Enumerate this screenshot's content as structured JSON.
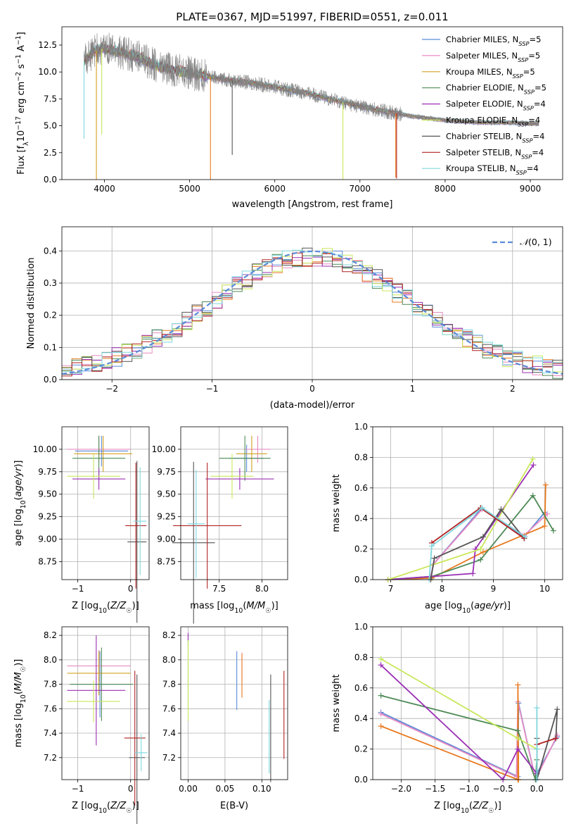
{
  "figure_title": "PLATE=0367, MJD=51997, FIBERID=0551, z=0.011",
  "colors": {
    "Chabrier MILES": "#5b8bd8",
    "Salpeter MILES": "#e78ac3",
    "Kroupa MILES": "#d4a020",
    "Chabrier ELODIE": "#4d8a55",
    "Salpeter ELODIE": "#9b30b5",
    "Kroupa ELODIE": "#c8e85a",
    "Chabrier STELIB": "#555555",
    "Salpeter STELIB": "#b22222",
    "Kroupa STELIB": "#7fd7dd",
    "orange": "#e87a20",
    "gaussian": "#5b8bd8"
  },
  "chart_data": [
    {
      "id": "spectrum",
      "type": "line",
      "title": "PLATE=0367, MJD=51997, FIBERID=0551, z=0.011",
      "xlabel": "wavelength [Angstrom, rest frame]",
      "ylabel": "Flux [f_λ 10^-17 erg cm^-2 s^-1 A^-1]",
      "xlim": [
        3500,
        9380
      ],
      "ylim": [
        0,
        14.2
      ],
      "xticks": [
        4000,
        5000,
        6000,
        7000,
        8000,
        9000
      ],
      "yticks": [
        0.0,
        2.5,
        5.0,
        7.5,
        10.0,
        12.5
      ],
      "legend_position": "top-right",
      "legend": [
        {
          "prefix": "Chabrier MILES, N",
          "sub": "SSP",
          "suffix": "=5"
        },
        {
          "prefix": "Salpeter MILES, N",
          "sub": "SSP",
          "suffix": "=5"
        },
        {
          "prefix": "Kroupa MILES, N",
          "sub": "SSP",
          "suffix": "=5"
        },
        {
          "prefix": "Chabrier ELODIE, N",
          "sub": "SSP",
          "suffix": "=5"
        },
        {
          "prefix": "Salpeter ELODIE, N",
          "sub": "SSP",
          "suffix": "=4"
        },
        {
          "prefix": "Kroupa ELODIE, N",
          "sub": "SSP",
          "suffix": "=4"
        },
        {
          "prefix": "Chabrier STELIB, N",
          "sub": "SSP",
          "suffix": "=4"
        },
        {
          "prefix": "Salpeter STELIB, N",
          "sub": "SSP",
          "suffix": "=4"
        },
        {
          "prefix": "Kroupa STELIB, N",
          "sub": "SSP",
          "suffix": "=4"
        }
      ],
      "continuum": {
        "x": [
          3750,
          3900,
          4000,
          4200,
          4400,
          4600,
          4800,
          5000,
          5200,
          5400,
          5600,
          5800,
          6000,
          6200,
          6400,
          6600,
          6800,
          7000,
          7200,
          7400,
          7600,
          7800,
          8000,
          8200,
          8400,
          8600,
          8800,
          9000,
          9100
        ],
        "y": [
          11.0,
          12.0,
          12.2,
          11.8,
          11.4,
          10.6,
          10.2,
          9.9,
          9.6,
          9.3,
          9.1,
          8.9,
          8.6,
          8.3,
          8.0,
          7.6,
          7.2,
          6.8,
          6.5,
          6.2,
          5.9,
          5.7,
          5.5,
          5.4,
          5.3,
          5.3,
          5.3,
          5.2,
          5.2
        ]
      },
      "dips": [
        {
          "x": 3905,
          "y": 0.0,
          "color": "Kroupa MILES"
        },
        {
          "x": 3968,
          "y": 4.2,
          "color": "Kroupa ELODIE"
        },
        {
          "x": 5245,
          "y": 0.0,
          "color": "orange"
        },
        {
          "x": 5500,
          "y": 2.3,
          "color": "Chabrier STELIB"
        },
        {
          "x": 6800,
          "y": 0.0,
          "color": "Kroupa ELODIE"
        },
        {
          "x": 7430,
          "y": 0.1,
          "color": "Salpeter STELIB"
        },
        {
          "x": 7420,
          "y": 0.2,
          "color": "orange"
        },
        {
          "x": 3760,
          "y": 3.8,
          "color": "Kroupa STELIB"
        }
      ]
    },
    {
      "id": "residuals",
      "type": "histogram",
      "xlabel": "(data-model)/error",
      "ylabel": "Normed distribution",
      "xlim": [
        -2.5,
        2.5
      ],
      "ylim": [
        0,
        0.475
      ],
      "xticks": [
        -2,
        -1,
        0,
        1,
        2
      ],
      "yticks": [
        0.0,
        0.1,
        0.2,
        0.3,
        0.4
      ],
      "grid": true,
      "legend_position": "top-right",
      "gaussian_label": "N(0, 1)",
      "bin_width": 0.1
    },
    {
      "id": "age_vs_Z",
      "type": "errorbar",
      "xlabel": "Z [log10(Z/Z☉)]",
      "ylabel": "age [log10(age/yr)]",
      "xlim": [
        -1.3,
        0.35
      ],
      "ylim": [
        8.55,
        10.25
      ],
      "xticks": [
        -1,
        0
      ],
      "yticks": [
        8.75,
        9.0,
        9.25,
        9.5,
        9.75,
        10.0
      ],
      "points": [
        {
          "m": "Chabrier MILES",
          "x": -0.55,
          "xerr": 0.5,
          "y": 9.98,
          "yerr": 0.17
        },
        {
          "m": "Salpeter MILES",
          "x": -0.6,
          "xerr": 0.6,
          "y": 10.0,
          "yerr": 0.15
        },
        {
          "m": "Kroupa MILES",
          "x": -0.52,
          "xerr": 0.55,
          "y": 9.95,
          "yerr": 0.2
        },
        {
          "m": "Chabrier ELODIE",
          "x": -0.6,
          "xerr": 0.5,
          "y": 9.9,
          "yerr": 0.25
        },
        {
          "m": "Salpeter ELODIE",
          "x": -0.6,
          "xerr": 0.5,
          "y": 9.67,
          "yerr": 0.12
        },
        {
          "m": "Kroupa ELODIE",
          "x": -0.7,
          "xerr": 0.5,
          "y": 9.7,
          "yerr": 0.25
        },
        {
          "m": "Chabrier STELIB",
          "x": 0.12,
          "xerr": 0.18,
          "y": 8.97,
          "yerr": 0.9
        },
        {
          "m": "Salpeter STELIB",
          "x": 0.1,
          "xerr": 0.2,
          "y": 9.15,
          "yerr": 0.7
        },
        {
          "m": "Kroupa STELIB",
          "x": 0.18,
          "xerr": 0.12,
          "y": 9.2,
          "yerr": 0.6
        }
      ]
    },
    {
      "id": "age_vs_mass",
      "type": "errorbar",
      "xlabel": "mass [log10(M/M☉)]",
      "ylabel": "",
      "xlim": [
        7.05,
        8.3
      ],
      "ylim": [
        8.55,
        10.25
      ],
      "xticks": [
        7.5,
        8.0
      ],
      "yticks": [
        8.75,
        9.0,
        9.25,
        9.5,
        9.75,
        10.0
      ],
      "points": [
        {
          "m": "Chabrier MILES",
          "x": 7.82,
          "xerr": 0.2,
          "y": 9.9,
          "yerr": 0.15
        },
        {
          "m": "Salpeter MILES",
          "x": 7.95,
          "xerr": 0.15,
          "y": 10.0,
          "yerr": 0.15
        },
        {
          "m": "Kroupa MILES",
          "x": 7.88,
          "xerr": 0.18,
          "y": 9.95,
          "yerr": 0.2
        },
        {
          "m": "Chabrier ELODIE",
          "x": 7.8,
          "xerr": 0.3,
          "y": 9.9,
          "yerr": 0.25
        },
        {
          "m": "Salpeter ELODIE",
          "x": 7.74,
          "xerr": 0.4,
          "y": 9.67,
          "yerr": 0.12
        },
        {
          "m": "Kroupa ELODIE",
          "x": 7.65,
          "xerr": 0.25,
          "y": 9.7,
          "yerr": 0.25
        },
        {
          "m": "Chabrier STELIB",
          "x": 7.2,
          "xerr": 0.25,
          "y": 8.96,
          "yerr": 0.9
        },
        {
          "m": "Salpeter STELIB",
          "x": 7.36,
          "xerr": 0.4,
          "y": 9.15,
          "yerr": 0.7
        },
        {
          "m": "Kroupa STELIB",
          "x": 7.23,
          "xerr": 0.1,
          "y": 9.17,
          "yerr": 0.6
        }
      ]
    },
    {
      "id": "mass_weight_vs_age",
      "type": "line",
      "xlabel": "age [log10(age/yr)]",
      "ylabel": "mass weight",
      "xlim": [
        6.65,
        10.35
      ],
      "ylim": [
        0,
        1.0
      ],
      "xticks": [
        7,
        8,
        9,
        10
      ],
      "yticks": [
        0.0,
        0.2,
        0.4,
        0.6,
        0.8,
        1.0
      ],
      "grid": true,
      "series": [
        {
          "m": "Chabrier MILES",
          "x": [
            6.95,
            7.78,
            7.83,
            8.78,
            9.6,
            10.0
          ],
          "y": [
            0.0,
            0.02,
            0.1,
            0.47,
            0.28,
            0.44
          ]
        },
        {
          "m": "Salpeter MILES",
          "x": [
            6.95,
            7.78,
            7.83,
            8.78,
            9.6,
            10.05
          ],
          "y": [
            0.0,
            0.02,
            0.1,
            0.46,
            0.29,
            0.43
          ]
        },
        {
          "m": "orange",
          "x": [
            6.95,
            7.8,
            8.8,
            10.0,
            10.02
          ],
          "y": [
            0.0,
            0.01,
            0.18,
            0.35,
            0.62
          ]
        },
        {
          "m": "Chabrier ELODIE",
          "x": [
            6.95,
            7.8,
            8.75,
            9.77,
            10.17
          ],
          "y": [
            0.0,
            0.02,
            0.13,
            0.55,
            0.32
          ]
        },
        {
          "m": "Salpeter ELODIE",
          "x": [
            6.95,
            8.6,
            8.65,
            9.78
          ],
          "y": [
            0.0,
            0.04,
            0.2,
            0.75
          ]
        },
        {
          "m": "Kroupa ELODIE",
          "x": [
            6.95,
            8.75,
            9.77
          ],
          "y": [
            0.0,
            0.2,
            0.79
          ]
        },
        {
          "m": "Chabrier STELIB",
          "x": [
            7.78,
            7.85,
            8.8,
            9.15,
            9.6
          ],
          "y": [
            0.0,
            0.14,
            0.28,
            0.46,
            0.27
          ]
        },
        {
          "m": "Salpeter STELIB",
          "x": [
            7.8,
            8.75,
            9.6
          ],
          "y": [
            0.24,
            0.47,
            0.27
          ]
        },
        {
          "m": "Kroupa STELIB",
          "x": [
            7.75,
            7.8,
            8.78,
            9.62
          ],
          "y": [
            0.0,
            0.22,
            0.47,
            0.28
          ]
        }
      ]
    },
    {
      "id": "mass_vs_Z",
      "type": "errorbar",
      "xlabel": "Z [log10(Z/Z☉)]",
      "ylabel": "mass [log10(M/M☉)]",
      "xlim": [
        -1.3,
        0.35
      ],
      "ylim": [
        7.02,
        8.27
      ],
      "xticks": [
        -1,
        0
      ],
      "yticks": [
        7.2,
        7.4,
        7.6,
        7.8,
        8.0,
        8.2
      ],
      "points": [
        {
          "m": "Chabrier MILES",
          "x": -0.58,
          "xerr": 0.55,
          "y": 7.8,
          "yerr": 0.27
        },
        {
          "m": "Salpeter MILES",
          "x": -0.6,
          "xerr": 0.6,
          "y": 7.95,
          "yerr": 0.13
        },
        {
          "m": "Kroupa MILES",
          "x": -0.6,
          "xerr": 0.6,
          "y": 7.89,
          "yerr": 0.18
        },
        {
          "m": "Chabrier ELODIE",
          "x": -0.55,
          "xerr": 0.6,
          "y": 7.8,
          "yerr": 0.3
        },
        {
          "m": "Salpeter ELODIE",
          "x": -0.65,
          "xerr": 0.55,
          "y": 7.75,
          "yerr": 0.45
        },
        {
          "m": "Kroupa ELODIE",
          "x": -0.7,
          "xerr": 0.5,
          "y": 7.66,
          "yerr": 0.17
        },
        {
          "m": "Chabrier STELIB",
          "x": 0.12,
          "xerr": 0.15,
          "y": 7.2,
          "yerr": 0.68
        },
        {
          "m": "Salpeter STELIB",
          "x": 0.08,
          "xerr": 0.2,
          "y": 7.36,
          "yerr": 0.55
        },
        {
          "m": "Kroupa STELIB",
          "x": 0.2,
          "xerr": 0.12,
          "y": 7.24,
          "yerr": 0.15
        }
      ]
    },
    {
      "id": "mass_vs_ebv",
      "type": "errorbar",
      "xlabel": "E(B-V)",
      "ylabel": "",
      "xlim": [
        -0.01,
        0.135
      ],
      "ylim": [
        7.02,
        8.27
      ],
      "xticks": [
        0.0,
        0.05,
        0.1
      ],
      "yticks": [
        7.2,
        7.4,
        7.6,
        7.8,
        8.0,
        8.2
      ],
      "points": [
        {
          "m": "Chabrier MILES",
          "x": 0.066,
          "y": 7.83,
          "yerr": 0.24
        },
        {
          "m": "Salpeter MILES",
          "x": 0.073,
          "y": 7.93,
          "yerr": 0.13
        },
        {
          "m": "orange",
          "x": 0.073,
          "y": 7.87,
          "yerr": 0.18
        },
        {
          "m": "Chabrier ELODIE",
          "x": 0.0,
          "y": 7.9,
          "yerr": 0.3
        },
        {
          "m": "Salpeter ELODIE",
          "x": 0.0,
          "y": 8.17,
          "yerr": 0.05
        },
        {
          "m": "Kroupa ELODIE",
          "x": 0.0,
          "y": 7.83,
          "yerr": 0.33
        },
        {
          "m": "Chabrier STELIB",
          "x": 0.112,
          "y": 7.44,
          "yerr": 0.44
        },
        {
          "m": "Salpeter STELIB",
          "x": 0.13,
          "y": 7.55,
          "yerr": 0.36
        },
        {
          "m": "Kroupa STELIB",
          "x": 0.11,
          "y": 7.37,
          "yerr": 0.3
        }
      ]
    },
    {
      "id": "mass_weight_vs_Z",
      "type": "line",
      "xlabel": "Z [log10(Z/Z☉)]",
      "ylabel": "mass weight",
      "xlim": [
        -2.42,
        0.38
      ],
      "ylim": [
        0,
        1.0
      ],
      "xticks": [
        -2.0,
        -1.5,
        -1.0,
        -0.5,
        0.0
      ],
      "yticks": [
        0.0,
        0.2,
        0.4,
        0.6,
        0.8,
        1.0
      ],
      "grid": true,
      "series": [
        {
          "m": "Chabrier MILES",
          "x": [
            -2.3,
            -0.28,
            -0.27,
            -0.02,
            0.0,
            0.3
          ],
          "y": [
            0.44,
            0.02,
            0.5,
            0.0,
            0.04,
            0.28
          ]
        },
        {
          "m": "Salpeter MILES",
          "x": [
            -2.3,
            -0.3,
            -0.28,
            -0.02,
            0.3
          ],
          "y": [
            0.43,
            0.02,
            0.51,
            0.0,
            0.29
          ]
        },
        {
          "m": "orange",
          "x": [
            -2.3,
            -0.28,
            -0.28,
            -0.27
          ],
          "y": [
            0.35,
            0.0,
            0.62,
            0.0
          ]
        },
        {
          "m": "Chabrier ELODIE",
          "x": [
            -2.3,
            -0.28,
            -0.02,
            0.0,
            0.0
          ],
          "y": [
            0.55,
            0.32,
            0.0,
            0.13,
            0.0
          ]
        },
        {
          "m": "Salpeter ELODIE",
          "x": [
            -2.3,
            -0.5,
            -0.28,
            0.0
          ],
          "y": [
            0.75,
            0.0,
            0.2,
            0.04
          ]
        },
        {
          "m": "Kroupa ELODIE",
          "x": [
            -2.3,
            -0.28,
            0.0
          ],
          "y": [
            0.79,
            0.27,
            0.2
          ]
        },
        {
          "m": "Chabrier STELIB",
          "x": [
            0.0,
            0.0,
            0.3,
            0.28
          ],
          "y": [
            0.27,
            0.0,
            0.46,
            0.27
          ]
        },
        {
          "m": "Salpeter STELIB",
          "x": [
            0.0,
            0.28
          ],
          "y": [
            0.23,
            0.27
          ]
        },
        {
          "m": "Kroupa STELIB",
          "x": [
            0.0,
            0.0,
            0.0
          ],
          "y": [
            0.47,
            0.2,
            0.0
          ]
        }
      ]
    }
  ]
}
